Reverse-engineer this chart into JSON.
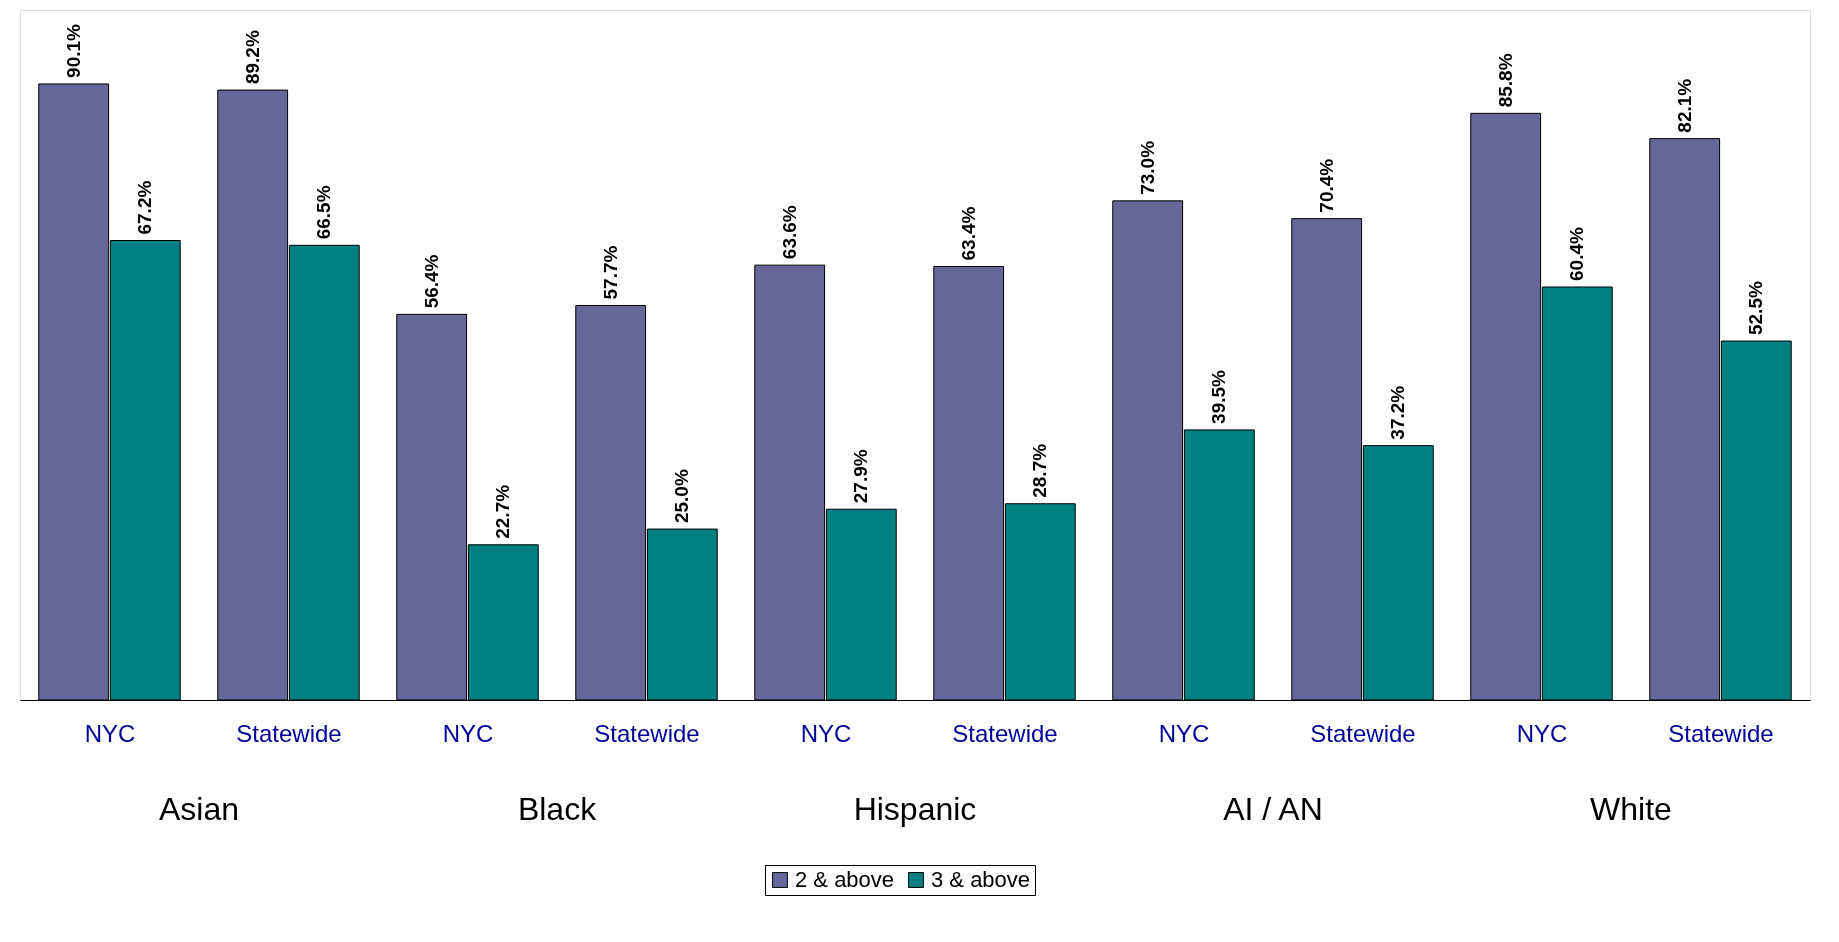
{
  "chart_data": {
    "type": "bar",
    "categories": [
      "NYC",
      "Statewide",
      "NYC",
      "Statewide",
      "NYC",
      "Statewide",
      "NYC",
      "Statewide",
      "NYC",
      "Statewide"
    ],
    "series": [
      {
        "name": "2 & above",
        "color": "#666699",
        "values": [
          90.1,
          89.2,
          56.4,
          57.7,
          63.6,
          63.4,
          73.0,
          70.4,
          85.8,
          82.1
        ],
        "value_labels": [
          "90.1%",
          "89.2%",
          "56.4%",
          "57.7%",
          "63.6%",
          "63.4%",
          "73.0%",
          "70.4%",
          "85.8%",
          "82.1%"
        ]
      },
      {
        "name": "3 & above",
        "color": "#008080",
        "values": [
          67.2,
          66.5,
          22.7,
          25.0,
          27.9,
          28.7,
          39.5,
          37.2,
          60.4,
          52.5
        ],
        "value_labels": [
          "67.2%",
          "66.5%",
          "22.7%",
          "25.0%",
          "27.9%",
          "28.7%",
          "39.5%",
          "37.2%",
          "60.4%",
          "52.5%"
        ]
      }
    ],
    "annotations": [
      "Asian",
      "Black",
      "Hispanic",
      "AI / AN",
      "White"
    ],
    "legend": "bottom",
    "grid": false
  }
}
